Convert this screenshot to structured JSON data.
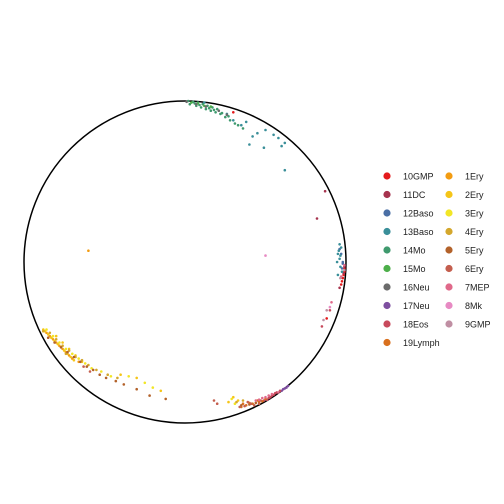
{
  "chart_data": {
    "type": "scatter",
    "title": "",
    "xlabel": "",
    "ylabel": "",
    "xlim": [
      -1.05,
      1.05
    ],
    "ylim": [
      -1.05,
      1.05
    ],
    "grid": false,
    "boundary": "unit-circle",
    "legend_position": "right",
    "legend_columns": 2,
    "series": [
      {
        "name": "10GMP",
        "color": "#e41a1c",
        "points": [
          [
            0.99,
            -0.06
          ],
          [
            0.98,
            -0.1
          ],
          [
            0.975,
            -0.12
          ],
          [
            0.97,
            -0.14
          ],
          [
            0.985,
            -0.08
          ],
          [
            0.99,
            -0.04
          ],
          [
            0.88,
            -0.35
          ],
          [
            0.3,
            0.93
          ]
        ]
      },
      {
        "name": "11DC",
        "color": "#a6334e",
        "points": [
          [
            0.99,
            -0.03
          ],
          [
            0.985,
            -0.07
          ],
          [
            0.96,
            -0.16
          ],
          [
            0.87,
            0.44
          ],
          [
            0.82,
            0.27
          ]
        ]
      },
      {
        "name": "12Baso",
        "color": "#4a6fa5",
        "points": [
          [
            0.98,
            0.0
          ],
          [
            0.97,
            0.05
          ],
          [
            0.975,
            -0.04
          ],
          [
            0.96,
            0.08
          ],
          [
            0.98,
            -0.01
          ]
        ]
      },
      {
        "name": "13Baso",
        "color": "#3a8f99",
        "points": [
          [
            0.96,
            0.02
          ],
          [
            0.955,
            0.07
          ],
          [
            0.965,
            -0.03
          ],
          [
            0.95,
            0.05
          ],
          [
            0.97,
            0.09
          ],
          [
            0.945,
            0.0
          ],
          [
            0.96,
            0.11
          ],
          [
            0.975,
            -0.06
          ],
          [
            0.95,
            -0.08
          ],
          [
            0.965,
            0.04
          ],
          [
            0.58,
            0.77
          ],
          [
            0.55,
            0.79
          ],
          [
            0.6,
            0.72
          ],
          [
            0.45,
            0.8
          ],
          [
            0.35,
            0.85
          ],
          [
            0.42,
            0.78
          ],
          [
            0.5,
            0.82
          ],
          [
            0.38,
            0.87
          ],
          [
            0.62,
            0.74
          ],
          [
            0.4,
            0.73
          ],
          [
            0.49,
            0.71
          ],
          [
            0.62,
            0.57
          ],
          [
            0.26,
            0.92
          ],
          [
            0.12,
            0.99
          ],
          [
            0.3,
            0.88
          ]
        ]
      },
      {
        "name": "14Mo",
        "color": "#3f9a6e",
        "points": [
          [
            0.02,
            1.0
          ],
          [
            0.05,
            0.995
          ],
          [
            0.08,
            0.99
          ],
          [
            0.11,
            0.98
          ],
          [
            0.14,
            0.97
          ],
          [
            0.17,
            0.96
          ],
          [
            0.2,
            0.95
          ],
          [
            0.03,
            0.98
          ],
          [
            0.07,
            0.97
          ],
          [
            0.1,
            0.96
          ],
          [
            0.13,
            0.95
          ],
          [
            0.16,
            0.94
          ],
          [
            0.19,
            0.93
          ],
          [
            0.22,
            0.92
          ],
          [
            0.25,
            0.9
          ],
          [
            0.28,
            0.88
          ],
          [
            0.31,
            0.86
          ],
          [
            0.06,
            0.985
          ],
          [
            0.09,
            0.975
          ],
          [
            0.15,
            0.955
          ],
          [
            0.18,
            0.945
          ],
          [
            0.23,
            0.925
          ],
          [
            0.27,
            0.905
          ],
          [
            0.33,
            0.85
          ],
          [
            0.36,
            0.83
          ]
        ]
      },
      {
        "name": "15Mo",
        "color": "#4daf4a",
        "points": [
          [
            0.04,
            0.99
          ],
          [
            0.08,
            0.985
          ],
          [
            0.12,
            0.97
          ],
          [
            0.16,
            0.965
          ]
        ]
      },
      {
        "name": "16Neu",
        "color": "#6b6b6b",
        "points": [
          [
            0.01,
            0.995
          ],
          [
            0.07,
            0.98
          ],
          [
            0.13,
            0.965
          ],
          [
            0.21,
            0.94
          ],
          [
            0.26,
            0.915
          ]
        ]
      },
      {
        "name": "17Neu",
        "color": "#7e4fa0",
        "points": [
          [
            0.61,
            -0.79
          ],
          [
            0.63,
            -0.78
          ],
          [
            0.6,
            -0.8
          ],
          [
            0.64,
            -0.77
          ],
          [
            0.62,
            -0.785
          ]
        ]
      },
      {
        "name": "18Eos",
        "color": "#c84a5c",
        "points": [
          [
            0.57,
            -0.81
          ],
          [
            0.55,
            -0.825
          ],
          [
            0.53,
            -0.84
          ],
          [
            0.59,
            -0.8
          ],
          [
            0.51,
            -0.855
          ],
          [
            0.56,
            -0.815
          ],
          [
            0.54,
            -0.83
          ],
          [
            0.49,
            -0.86
          ],
          [
            0.52,
            -0.845
          ],
          [
            0.85,
            -0.4
          ],
          [
            0.9,
            -0.3
          ]
        ]
      },
      {
        "name": "19Lymph",
        "color": "#d9701e",
        "points": [
          [
            0.42,
            -0.88
          ],
          [
            0.38,
            -0.89
          ],
          [
            0.46,
            -0.87
          ],
          [
            0.35,
            -0.9
          ],
          [
            0.45,
            -0.86
          ],
          [
            0.4,
            -0.875
          ],
          [
            0.48,
            -0.865
          ],
          [
            0.5,
            -0.85
          ],
          [
            0.36,
            -0.88
          ]
        ]
      },
      {
        "name": "1Ery",
        "color": "#f39c12",
        "points": [
          [
            -0.8,
            -0.5
          ],
          [
            -0.78,
            -0.52
          ],
          [
            -0.76,
            -0.54
          ],
          [
            -0.74,
            -0.56
          ],
          [
            -0.82,
            -0.48
          ],
          [
            -0.84,
            -0.46
          ],
          [
            -0.72,
            -0.58
          ],
          [
            -0.7,
            -0.6
          ],
          [
            -0.6,
            0.07
          ],
          [
            -0.86,
            -0.44
          ],
          [
            -0.66,
            -0.62
          ]
        ]
      },
      {
        "name": "2Ery",
        "color": "#f5c518",
        "points": [
          [
            -0.87,
            -0.43
          ],
          [
            -0.85,
            -0.45
          ],
          [
            -0.83,
            -0.47
          ],
          [
            -0.81,
            -0.49
          ],
          [
            -0.79,
            -0.51
          ],
          [
            -0.77,
            -0.53
          ],
          [
            -0.75,
            -0.55
          ],
          [
            -0.73,
            -0.57
          ],
          [
            -0.71,
            -0.59
          ],
          [
            -0.69,
            -0.61
          ],
          [
            -0.88,
            -0.42
          ],
          [
            -0.8,
            -0.46
          ],
          [
            -0.76,
            -0.5
          ],
          [
            -0.72,
            -0.54
          ],
          [
            -0.68,
            -0.58
          ],
          [
            -0.64,
            -0.62
          ],
          [
            -0.4,
            -0.7
          ],
          [
            -0.3,
            -0.72
          ],
          [
            -0.15,
            -0.8
          ],
          [
            0.27,
            -0.87
          ],
          [
            0.33,
            -0.86
          ],
          [
            0.3,
            -0.84
          ]
        ]
      },
      {
        "name": "3Ery",
        "color": "#f2e626",
        "points": [
          [
            -0.86,
            -0.42
          ],
          [
            -0.82,
            -0.46
          ],
          [
            -0.78,
            -0.5
          ],
          [
            -0.74,
            -0.54
          ],
          [
            -0.7,
            -0.57
          ],
          [
            -0.66,
            -0.6
          ],
          [
            -0.62,
            -0.63
          ],
          [
            -0.58,
            -0.66
          ],
          [
            -0.52,
            -0.68
          ],
          [
            -0.46,
            -0.71
          ],
          [
            -0.35,
            -0.71
          ],
          [
            -0.25,
            -0.75
          ],
          [
            -0.2,
            -0.78
          ],
          [
            0.29,
            -0.85
          ],
          [
            0.31,
            -0.88
          ]
        ]
      },
      {
        "name": "4Ery",
        "color": "#d4a72c",
        "points": [
          [
            -0.84,
            -0.44
          ],
          [
            -0.8,
            -0.48
          ],
          [
            -0.76,
            -0.52
          ],
          [
            -0.72,
            -0.55
          ],
          [
            -0.68,
            -0.59
          ],
          [
            -0.64,
            -0.61
          ],
          [
            -0.6,
            -0.64
          ],
          [
            -0.55,
            -0.67
          ],
          [
            -0.48,
            -0.7
          ],
          [
            -0.42,
            -0.72
          ],
          [
            -0.88,
            -0.43
          ],
          [
            -0.74,
            -0.57
          ],
          [
            0.32,
            -0.87
          ],
          [
            0.36,
            -0.86
          ]
        ]
      },
      {
        "name": "5Ery",
        "color": "#b3622a",
        "points": [
          [
            -0.85,
            -0.47
          ],
          [
            -0.81,
            -0.5
          ],
          [
            -0.77,
            -0.53
          ],
          [
            -0.73,
            -0.56
          ],
          [
            -0.69,
            -0.59
          ],
          [
            -0.65,
            -0.62
          ],
          [
            -0.61,
            -0.65
          ],
          [
            -0.57,
            -0.67
          ],
          [
            -0.53,
            -0.7
          ],
          [
            -0.49,
            -0.72
          ],
          [
            -0.43,
            -0.74
          ],
          [
            -0.38,
            -0.76
          ],
          [
            -0.3,
            -0.79
          ],
          [
            -0.22,
            -0.83
          ],
          [
            -0.12,
            -0.85
          ],
          [
            0.35,
            -0.89
          ],
          [
            0.4,
            -0.885
          ],
          [
            0.44,
            -0.875
          ]
        ]
      },
      {
        "name": "6Ery",
        "color": "#c45e4e",
        "points": [
          [
            0.34,
            -0.9
          ],
          [
            0.37,
            -0.895
          ],
          [
            0.41,
            -0.88
          ],
          [
            0.43,
            -0.89
          ],
          [
            0.46,
            -0.88
          ],
          [
            0.47,
            -0.86
          ],
          [
            0.39,
            -0.87
          ],
          [
            0.2,
            -0.88
          ],
          [
            0.18,
            -0.86
          ],
          [
            -0.63,
            -0.65
          ],
          [
            -0.59,
            -0.68
          ]
        ]
      },
      {
        "name": "7MEP",
        "color": "#e0698a",
        "points": [
          [
            0.5,
            -0.84
          ],
          [
            0.52,
            -0.83
          ],
          [
            0.48,
            -0.845
          ],
          [
            0.54,
            -0.82
          ],
          [
            0.46,
            -0.855
          ],
          [
            0.58,
            -0.81
          ],
          [
            0.44,
            -0.86
          ],
          [
            0.91,
            -0.25
          ],
          [
            0.99,
            -0.02
          ],
          [
            0.97,
            -0.09
          ]
        ]
      },
      {
        "name": "8Mk",
        "color": "#e78ac3",
        "points": [
          [
            0.5,
            0.04
          ],
          [
            0.9,
            -0.28
          ]
        ]
      },
      {
        "name": "9GMP",
        "color": "#c08fa3",
        "points": [
          [
            0.88,
            -0.3
          ],
          [
            0.86,
            -0.36
          ],
          [
            0.99,
            -0.05
          ],
          [
            0.965,
            -0.1
          ]
        ]
      }
    ]
  }
}
